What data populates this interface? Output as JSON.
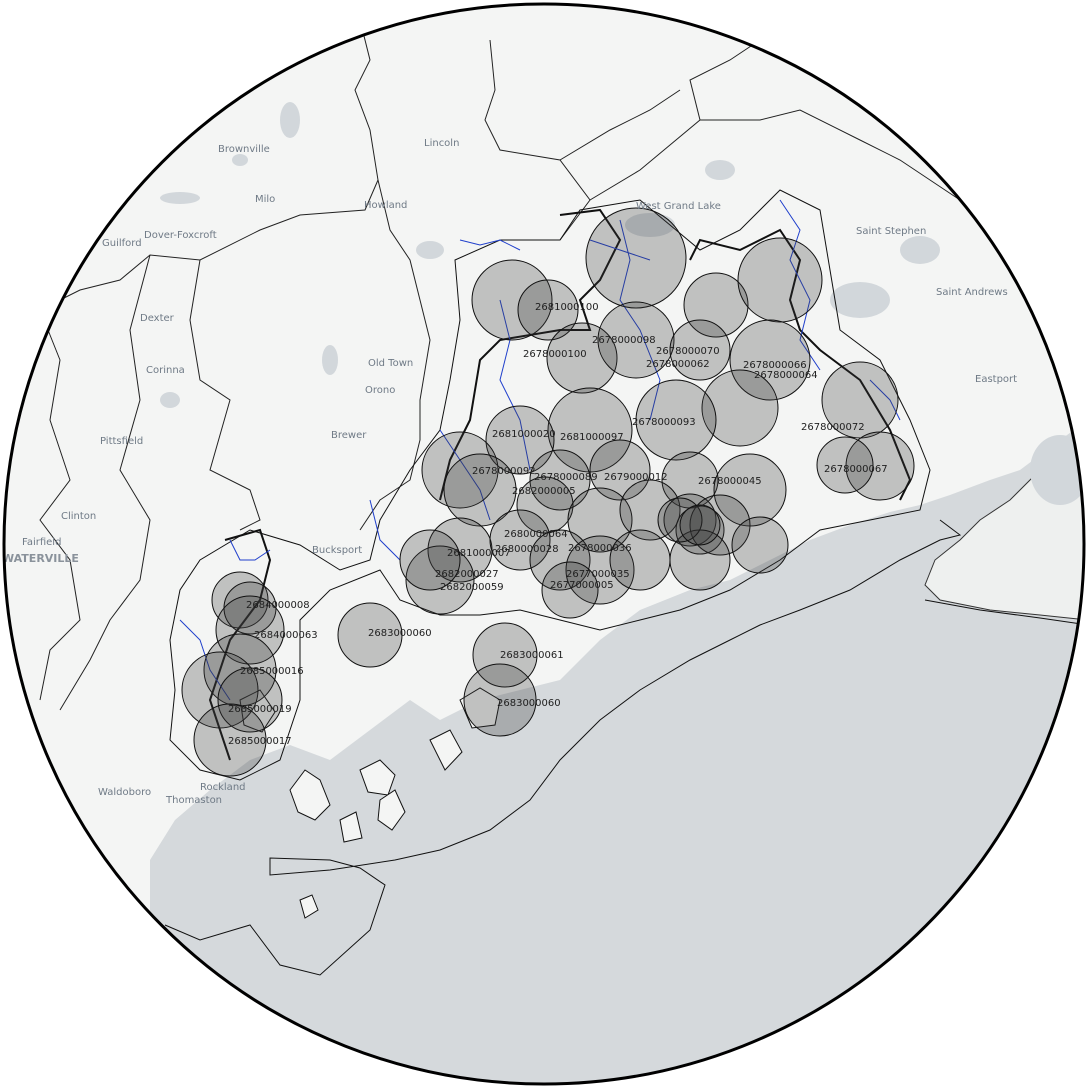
{
  "map": {
    "colors": {
      "land": "#f4f5f4",
      "water": "#d5d9dc",
      "lake": "#ccd2d6",
      "border": "#111111",
      "river": "#1f3fcc",
      "circle_fill": "#3a3a3a",
      "frame": "#000000"
    },
    "places": [
      {
        "name": "Brownville",
        "big": false
      },
      {
        "name": "Lincoln",
        "big": false
      },
      {
        "name": "West Grand Lake",
        "big": false
      },
      {
        "name": "Milo",
        "big": false
      },
      {
        "name": "Howland",
        "big": false
      },
      {
        "name": "Saint Stephen",
        "big": false
      },
      {
        "name": "Guilford",
        "big": false
      },
      {
        "name": "Dover-Foxcroft",
        "big": false
      },
      {
        "name": "Saint Andrews",
        "big": false
      },
      {
        "name": "Dexter",
        "big": false
      },
      {
        "name": "Old Town",
        "big": false
      },
      {
        "name": "Orono",
        "big": false
      },
      {
        "name": "Corinna",
        "big": false
      },
      {
        "name": "Eastport",
        "big": false
      },
      {
        "name": "Brewer",
        "big": false
      },
      {
        "name": "Pittsfield",
        "big": false
      },
      {
        "name": "Clinton",
        "big": false
      },
      {
        "name": "Fairfield",
        "big": false
      },
      {
        "name": "WATERVILLE",
        "big": true
      },
      {
        "name": "Bucksport",
        "big": false
      },
      {
        "name": "Waldoboro",
        "big": false
      },
      {
        "name": "Thomaston",
        "big": false
      },
      {
        "name": "Rockland",
        "big": false
      }
    ],
    "coverage_labels": [
      "2681000100",
      "2678000100",
      "2678000098",
      "2678000070",
      "2678000066",
      "2678000064",
      "2678000062",
      "2678000093",
      "2681000020",
      "2681000097",
      "2678000072",
      "2678000067",
      "2678000092",
      "2678000089",
      "2678000045",
      "2682000005",
      "2679000012",
      "2680000064",
      "2681000007",
      "2682000027",
      "2682000059",
      "2680000028",
      "2677000035",
      "2677000005",
      "2678000036",
      "2683000060",
      "2683000061",
      "2683000060",
      "2684000063",
      "2684000008",
      "2685000016",
      "2685000019",
      "2685000017"
    ]
  }
}
